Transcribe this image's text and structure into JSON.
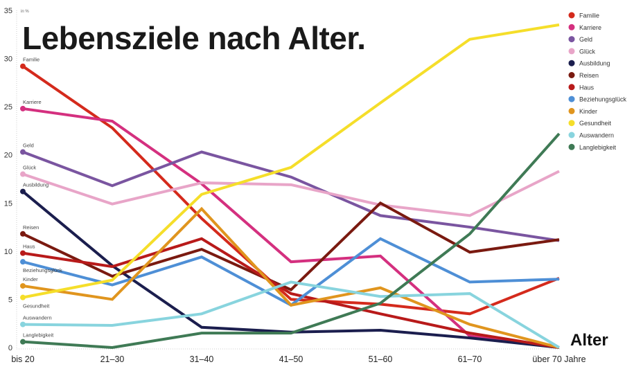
{
  "chart_data": {
    "type": "line",
    "title": "Lebensziele nach Alter.",
    "ylabel": "in %",
    "xlabel": "Alter",
    "categories": [
      "bis 20",
      "21–30",
      "31–40",
      "41–50",
      "51–60",
      "61–70",
      "über 70 Jahre"
    ],
    "ylim": [
      0,
      35
    ],
    "yticks": [
      0,
      5,
      10,
      15,
      20,
      25,
      30,
      35
    ],
    "grid": false,
    "legend_placement": "right",
    "series": [
      {
        "name": "Familie",
        "color": "#d42a1c",
        "values": [
          29.2,
          22.8,
          13.4,
          5.0,
          4.5,
          3.5,
          7.2
        ]
      },
      {
        "name": "Karriere",
        "color": "#d4307f",
        "values": [
          24.8,
          23.5,
          17.0,
          8.9,
          9.5,
          1.2,
          0.0
        ]
      },
      {
        "name": "Geld",
        "color": "#7a55a0",
        "values": [
          20.3,
          16.8,
          20.3,
          17.7,
          13.7,
          12.5,
          11.1
        ]
      },
      {
        "name": "Glück",
        "color": "#e8a5c8",
        "values": [
          18.0,
          14.9,
          17.1,
          16.9,
          14.8,
          13.7,
          18.3
        ]
      },
      {
        "name": "Ausbildung",
        "color": "#1b1e4e",
        "values": [
          16.2,
          8.5,
          2.1,
          1.6,
          1.8,
          1.0,
          0.0
        ]
      },
      {
        "name": "Reisen",
        "color": "#7a1a10",
        "values": [
          11.8,
          7.4,
          10.2,
          6.0,
          15.0,
          9.9,
          11.2
        ]
      },
      {
        "name": "Haus",
        "color": "#b81a1a",
        "values": [
          9.8,
          8.4,
          11.3,
          5.6,
          3.5,
          1.5,
          0.0
        ]
      },
      {
        "name": "Beziehungsglück",
        "color": "#4e8fd6",
        "values": [
          8.9,
          6.5,
          9.4,
          4.4,
          11.3,
          6.8,
          7.1
        ]
      },
      {
        "name": "Kinder",
        "color": "#e0951e",
        "values": [
          6.4,
          5.0,
          14.4,
          4.4,
          6.2,
          2.4,
          0.0
        ]
      },
      {
        "name": "Gesundheit",
        "color": "#f5de2a",
        "values": [
          5.2,
          7.0,
          15.9,
          18.7,
          25.4,
          32.0,
          33.5
        ]
      },
      {
        "name": "Auswandern",
        "color": "#88d4de",
        "values": [
          2.4,
          2.3,
          3.5,
          6.8,
          5.3,
          5.6,
          0.0
        ]
      },
      {
        "name": "Langlebigkeit",
        "color": "#3f7a55",
        "values": [
          0.6,
          0.0,
          1.5,
          1.5,
          4.6,
          11.8,
          22.2
        ]
      }
    ]
  }
}
